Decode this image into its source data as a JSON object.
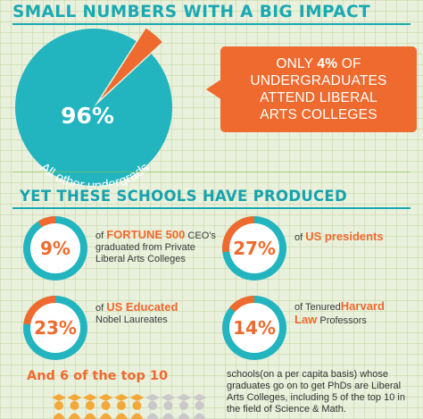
{
  "headline": "SMALL NUMBERS WITH A BIG IMPACT",
  "pie": {
    "major_value": 96,
    "minor_value": 4,
    "major_label": "96%",
    "major_caption": "All other undergrads",
    "major_color": "#22b5bf",
    "minor_color": "#ef6a2e"
  },
  "callout": {
    "line1_pre": "ONLY ",
    "line1_bold": "4%",
    "line1_post": " OF",
    "line2": "UNDERGRADUATES",
    "line3": "ATTEND LIBERAL",
    "line4": "ARTS COLLEGES"
  },
  "subhead": "YET THESE SCHOOLS HAVE PRODUCED",
  "stats": [
    {
      "value": 9,
      "label": "9%",
      "desc_pre": "of ",
      "desc_hi": "FORTUNE 500",
      "desc_post": " CEO's graduated from Private Liberal Arts Colleges"
    },
    {
      "value": 27,
      "label": "27%",
      "desc_pre": "of ",
      "desc_hi": "US presidents",
      "desc_post": ""
    },
    {
      "value": 23,
      "label": "23%",
      "desc_pre": "of ",
      "desc_hi": "US Educated",
      "desc_post": "Nobel Laureates"
    },
    {
      "value": 14,
      "label": "14%",
      "desc_pre": "of Tenured",
      "desc_hi": "Harvard Law",
      "desc_post": " Professors"
    }
  ],
  "ring_colors": {
    "track": "#22b5bf",
    "fill": "#ef6a2e",
    "inner": "#ffffff"
  },
  "top10": {
    "headline": "And 6 of the top 10",
    "highlighted": 6,
    "total": 10,
    "highlight_color": "#f3a93a",
    "muted_color": "#c9c9c9",
    "description": "schools(on a per capita basis) whose graduates go on to get PhDs are Liberal Arts Colleges, including 5 of the top 10 in the field of Science & Math."
  }
}
